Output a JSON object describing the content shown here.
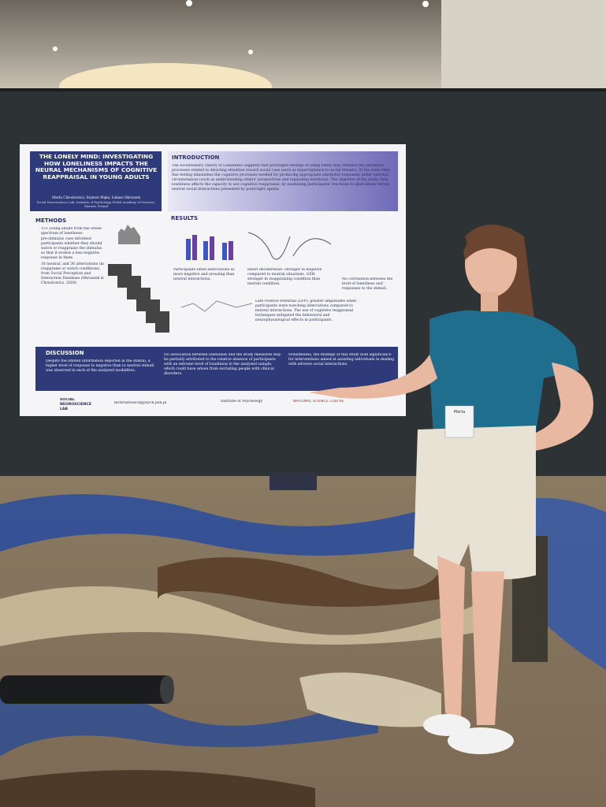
{
  "poster": {
    "title": "THE LONELY MIND: INVESTIGATING HOW LONELINESS IMPACTS THE NEURAL MECHANISMS OF COGNITIVE REAPPRAISAL IN YOUNG ADULTS",
    "authors": "Marta Chrustowicz, Szymon Mąka, Łukasz Okruszek",
    "affiliation": "Social Neuroscience Lab, Institute of Psychology, Polish Academy of Sciences, Warsaw, Poland",
    "introduction": {
      "heading": "INTRODUCTION",
      "text": "The Evolutionary Theory of Loneliness suggests that prolonged feelings of being lonely may enhance the automatic processes related to directing attention toward social cues (such as hypervigilance to social threats). At the same time, this feeling diminishes the cognitive processes needed for producing appropriate emotional responses under external circumstances (such as understanding others' perspectives and regulating emotions). The objective of the study: how loneliness affects the capacity to use cognitive reappraisal, by examining participants' reactions to altercations versus neutral social interactions presented by point-light agents."
    },
    "methods": {
      "heading": "METHODS",
      "bullets": [
        "151 young adults from the whole spectrum of loneliness",
        "pre-stimulus cues informed participants whether they should watch or reappraise the stimulus so that it evokes a less negative response in them",
        "18 neutral, and 36 altercations (in reappraise or watch conditions) from Social Perception and Interaction Database (Okruszek & Chrustowicz, 2020)"
      ]
    },
    "results": {
      "heading": "RESULTS",
      "ratings": "Participants rated altercations as more negative and arousing than neutral interactions.",
      "heart": "Heart deceleration: stronger in negative compared to neutral situations. GSR: stronger in reappraising condition than neutral condition.",
      "correlation": "No correlation between the level of loneliness and responses to the stimuli.",
      "lpp": "Late Positive Potential (LPP): greater amplitudes when participants were watching altercations compared to neutral interactions. The use of cognitive reappraisal techniques mitigated the behavioral and neurophysiological effects in participants."
    },
    "discussion": {
      "heading": "DISCUSSION",
      "paragraphs": [
        "Despite the limited information depicted in the stimuli, a higher level of response to negative than to neutral stimuli was observed in each of the analyzed modalities.",
        "No association between loneliness and the study measures may be partially attributed to the relative absence of participants with an extreme level of loneliness in the analyzed sample, which could have arisen from excluding people with clinical disorders.",
        "Nonetheless, the findings of this study hold significance for interventions aimed at assisting individuals in dealing with adverse social interactions."
      ]
    },
    "footer": {
      "lab": "SOCIAL NEUROSCIENCE LAB",
      "email": "mchrustowicz@psych.pan.pl",
      "institute": "Institute of Psychology",
      "funder": "NATIONAL SCIENCE CENTRE"
    }
  },
  "badge": "Marta"
}
